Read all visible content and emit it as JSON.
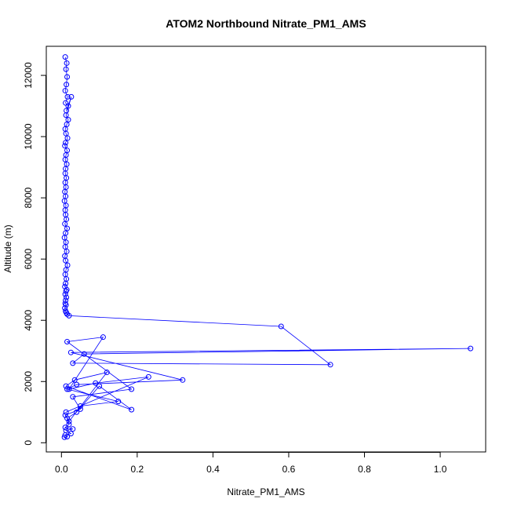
{
  "chart_data": {
    "type": "scatter",
    "title": "ATOM2 Northbound Nitrate_PM1_AMS",
    "xlabel": "Nitrate_PM1_AMS",
    "ylabel": "Altitude (m)",
    "xlim": [
      -0.04,
      1.12
    ],
    "ylim": [
      -300,
      12950
    ],
    "x_ticks": [
      0.0,
      0.2,
      0.4,
      0.6,
      0.8,
      1.0
    ],
    "x_tick_labels": [
      "0.0",
      "0.2",
      "0.4",
      "0.6",
      "0.8",
      "1.0"
    ],
    "y_ticks": [
      0,
      2000,
      4000,
      6000,
      8000,
      10000,
      12000
    ],
    "y_tick_labels": [
      "0",
      "2000",
      "4000",
      "6000",
      "8000",
      "10000",
      "12000"
    ],
    "grid": false,
    "color": "#0000ff",
    "marker": "open-circle",
    "connected": true,
    "series": [
      {
        "x": [
          0.01,
          0.014,
          0.012,
          0.015,
          0.013,
          0.01,
          0.016,
          0.011,
          0.018,
          0.013,
          0.026,
          0.012,
          0.018,
          0.014,
          0.01,
          0.012,
          0.016,
          0.011,
          0.009,
          0.015,
          0.012,
          0.01,
          0.014,
          0.011,
          0.01,
          0.013,
          0.01,
          0.012,
          0.009,
          0.011,
          0.008,
          0.012,
          0.01,
          0.011,
          0.013,
          0.009,
          0.015,
          0.011,
          0.008,
          0.012,
          0.01,
          0.014,
          0.009,
          0.011,
          0.016,
          0.012,
          0.01,
          0.013,
          0.011,
          0.009,
          0.014,
          0.012,
          0.01,
          0.013,
          0.011,
          0.01,
          0.012,
          0.009,
          0.011,
          0.013,
          0.015,
          0.02,
          0.58,
          0.71,
          0.03,
          0.06,
          1.08,
          0.025,
          0.32,
          0.04,
          0.015,
          0.15,
          0.05,
          0.012,
          0.23,
          0.09,
          0.02,
          0.11,
          0.015,
          0.185,
          0.03,
          0.05,
          0.01,
          0.02,
          0.12,
          0.035,
          0.012,
          0.185,
          0.1,
          0.04,
          0.015,
          0.02,
          0.01,
          0.03,
          0.012,
          0.025,
          0.01,
          0.015,
          0.008
        ],
        "y": [
          12600,
          12400,
          12200,
          11950,
          11700,
          11500,
          11300,
          11100,
          11000,
          10850,
          11300,
          10700,
          10550,
          10400,
          10250,
          10100,
          9950,
          9800,
          9700,
          9550,
          9400,
          9250,
          9100,
          8950,
          8800,
          8650,
          8500,
          8350,
          8200,
          8050,
          7900,
          7750,
          7600,
          7450,
          7300,
          7150,
          7000,
          6850,
          6700,
          6550,
          6400,
          6250,
          6100,
          5950,
          5800,
          5650,
          5500,
          5350,
          5200,
          5100,
          5000,
          4950,
          4850,
          4750,
          4650,
          4550,
          4500,
          4400,
          4300,
          4250,
          4200,
          4150,
          3800,
          2550,
          2600,
          2900,
          3080,
          2950,
          2050,
          1900,
          1750,
          1350,
          1200,
          1000,
          2150,
          1950,
          1750,
          3450,
          3300,
          1750,
          1500,
          1100,
          900,
          700,
          2300,
          2050,
          1850,
          1080,
          1850,
          1000,
          800,
          600,
          500,
          450,
          400,
          300,
          250,
          200,
          180
        ]
      }
    ]
  }
}
